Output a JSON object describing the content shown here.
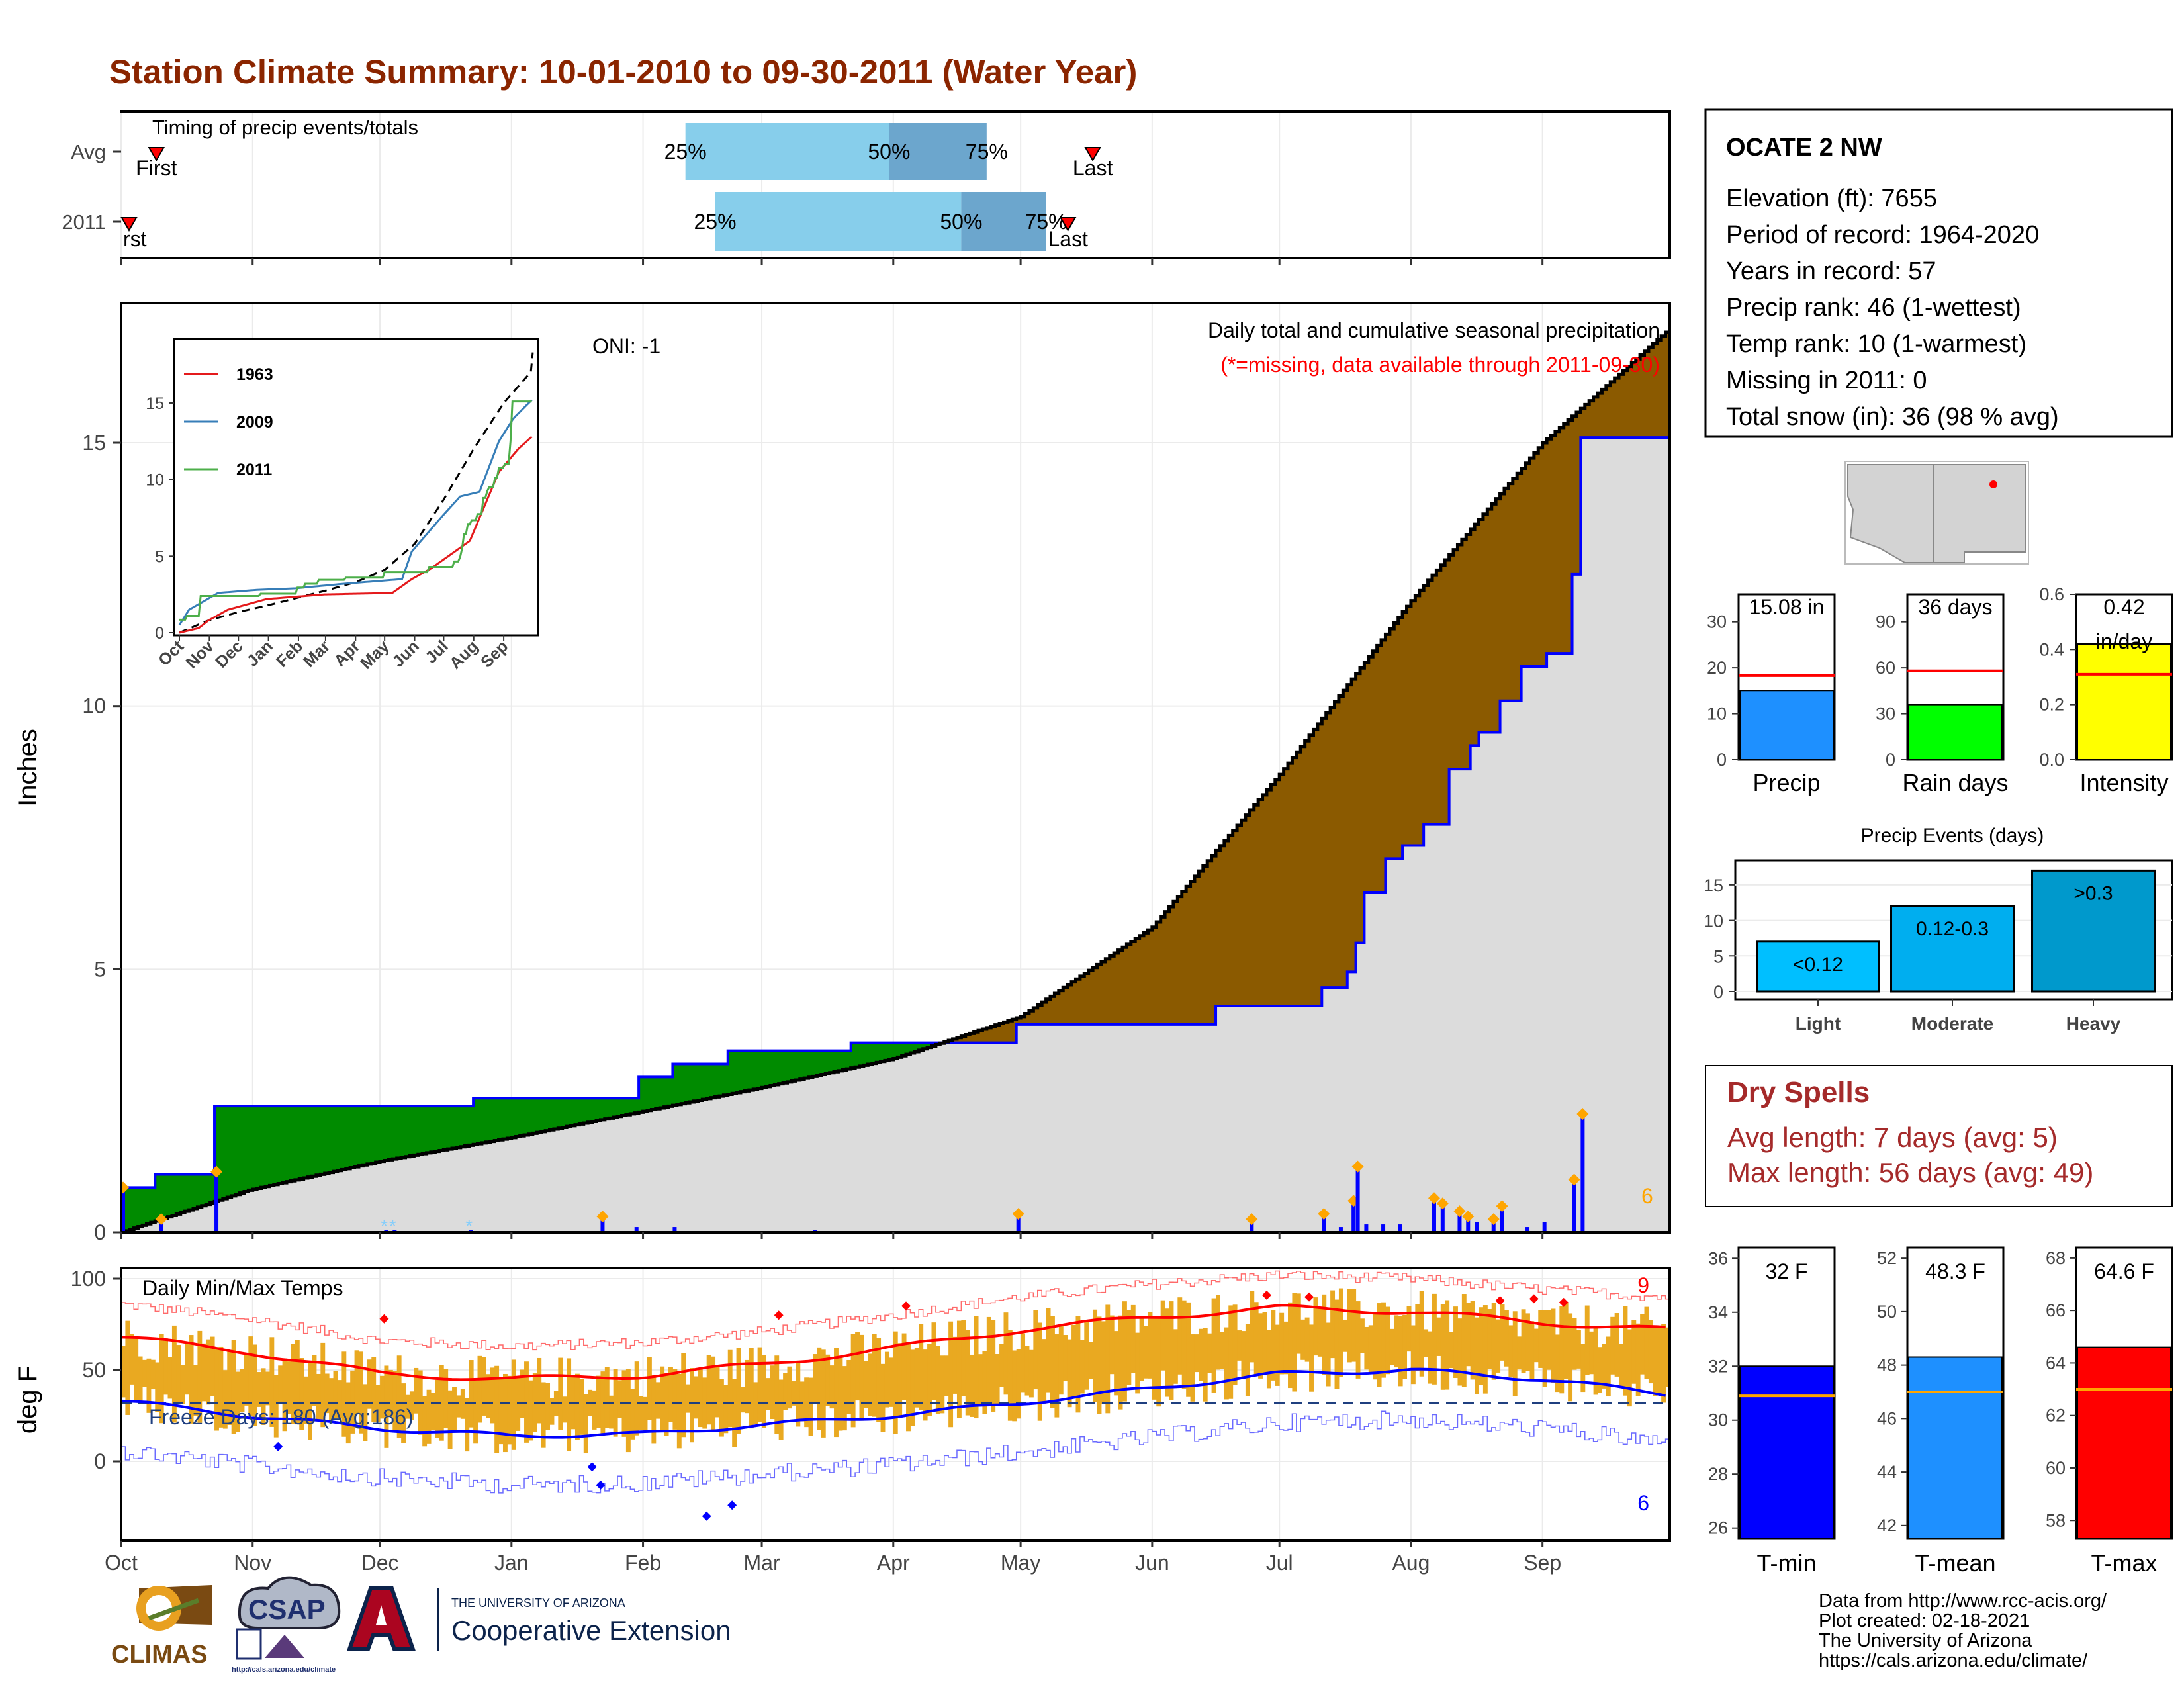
{
  "title": "Station Climate Summary: 10-01-2010 to 09-30-2011 (Water Year)",
  "colors": {
    "title": "#8B2500",
    "light_blue": "#87CEEB",
    "mid_blue": "#6CA6CD",
    "brown": "#8B5A00",
    "green": "#008B00",
    "gray_fill": "#DCDCDC",
    "cum_line": "#0000FF",
    "tmax_bar": "#E9A921",
    "tmax_avg": "#FF0000",
    "tmin_avg": "#0000FF",
    "red": "#FF0000",
    "dry_red": "#A52A2A",
    "orange": "#FFA500"
  },
  "months": [
    "Oct",
    "Nov",
    "Dec",
    "Jan",
    "Feb",
    "Mar",
    "Apr",
    "May",
    "Jun",
    "Jul",
    "Aug",
    "Sep"
  ],
  "timing": {
    "label": "Timing of precip events/totals",
    "rows": [
      "Avg",
      "2011"
    ],
    "avg": {
      "first_day": 8,
      "last_day": 229,
      "p25_day": 133,
      "p50_day": 181,
      "p75_day": 204
    },
    "y2011": {
      "first_day": 0,
      "last_day": 223,
      "p25_day": 140,
      "p50_day": 198,
      "p75_day": 218
    },
    "first_label": "First",
    "last_label": "Last",
    "p25": "25%",
    "p50": "50%",
    "p75": "75%",
    "y2011_first_text": "rst"
  },
  "info_box": {
    "station": "OCATE 2 NW",
    "lines": [
      "Elevation (ft): 7655",
      "Period of record: 1964-2020",
      "Years in record: 57",
      "Precip rank: 46 (1-wettest)",
      "Temp rank: 10 (1-warmest)",
      "Missing in 2011: 0",
      "Total snow (in): 36 (98 % avg)"
    ]
  },
  "precip_panel": {
    "ylabel": "Inches",
    "legend_line1": "Daily total and cumulative seasonal precipitation",
    "legend_line2": "(*=missing, data available through 2011-09-30)",
    "oni": "ONI: -1",
    "count": "6",
    "yticks": [
      0,
      5,
      10,
      15
    ],
    "ymax": 17.1
  },
  "inset": {
    "xticks": [
      "Oct",
      "Nov",
      "Dec",
      "Jan",
      "Feb",
      "Mar",
      "Apr",
      "May",
      "Jun",
      "Jul",
      "Aug",
      "Sep"
    ],
    "yticks": [
      0,
      5,
      10,
      15
    ],
    "legend": [
      "1963",
      "2009",
      "2011"
    ]
  },
  "mini_bars": {
    "precip": {
      "label": "Precip",
      "value": 15.08,
      "avg": 18.3,
      "text": "15.08 in",
      "yticks": [
        0,
        10,
        20,
        30
      ],
      "ymax": 36
    },
    "rain_days": {
      "label": "Rain days",
      "value": 36,
      "avg": 58,
      "text": "36 days",
      "yticks": [
        0,
        30,
        60,
        90
      ],
      "ymax": 108
    },
    "intensity": {
      "label": "Intensity",
      "value": 0.42,
      "avg": 0.31,
      "text1": "0.42",
      "text2": "in/day",
      "yticks": [
        "0.0",
        "0.2",
        "0.4",
        "0.6"
      ],
      "ymax": 0.6
    }
  },
  "events": {
    "title": "Precip Events (days)",
    "categories": [
      "Light",
      "Moderate",
      "Heavy"
    ],
    "values": [
      7,
      12,
      17
    ],
    "labels": [
      "<0.12",
      "0.12-0.3",
      ">0.3"
    ],
    "yticks": [
      0,
      5,
      10,
      15
    ]
  },
  "dry_spells": {
    "title": "Dry Spells",
    "line1": "Avg length: 7 days (avg: 5)",
    "line2": "Max length: 56 days (avg: 49)"
  },
  "temp_panel": {
    "ylabel": "deg F",
    "label": "Daily Min/Max Temps",
    "freeze": "Freeze Days: 180 (Avg:186)",
    "hot_count": "9",
    "cold_count": "6",
    "yticks": [
      0,
      50,
      100
    ]
  },
  "temp_bars": {
    "tmin": {
      "label": "T-min",
      "value": 32.0,
      "avg": 30.9,
      "text": "32 F",
      "yticks": [
        28,
        30,
        32,
        34,
        36,
        26
      ],
      "ymin": 25.6,
      "ymax": 36.4
    },
    "tmean": {
      "label": "T-mean",
      "value": 48.3,
      "avg": 47.0,
      "text": "48.3 F",
      "yticks": [
        42,
        44,
        46,
        48,
        50,
        52
      ],
      "ymin": 41.5,
      "ymax": 52.4
    },
    "tmax": {
      "label": "T-max",
      "value": 64.6,
      "avg": 63.0,
      "text": "64.6 F",
      "yticks": [
        58,
        60,
        62,
        64,
        66,
        68
      ],
      "ymin": 57.3,
      "ymax": 68.4
    }
  },
  "footer": {
    "lines": [
      "Data from http://www.rcc-acis.org/",
      "Plot created: 02-18-2021",
      "The University of Arizona",
      "https://cals.arizona.edu/climate/"
    ],
    "ua_small": "THE UNIVERSITY OF ARIZONA",
    "ua_big": "Cooperative Extension",
    "climas": "CLIMAS",
    "csap": "CSAP",
    "csap_url": "http://cals.arizona.edu/climate"
  },
  "chart_data": {
    "type": "area",
    "title": "Station Climate Summary: 10-01-2010 to 09-30-2011 (Water Year)",
    "ylabel": "Inches",
    "cumulative_2011": [
      [
        0,
        0.85
      ],
      [
        8,
        0.85
      ],
      [
        8,
        1.1
      ],
      [
        22,
        1.1
      ],
      [
        22,
        2.4
      ],
      [
        83,
        2.4
      ],
      [
        83,
        2.55
      ],
      [
        122,
        2.55
      ],
      [
        122,
        2.95
      ],
      [
        130,
        2.95
      ],
      [
        130,
        3.2
      ],
      [
        143,
        3.2
      ],
      [
        143,
        3.45
      ],
      [
        172,
        3.45
      ],
      [
        172,
        3.6
      ],
      [
        211,
        3.6
      ],
      [
        211,
        3.95
      ],
      [
        258,
        3.95
      ],
      [
        258,
        4.3
      ],
      [
        283,
        4.3
      ],
      [
        283,
        4.65
      ],
      [
        289,
        4.65
      ],
      [
        289,
        4.95
      ],
      [
        291,
        4.95
      ],
      [
        291,
        5.5
      ],
      [
        293,
        5.5
      ],
      [
        293,
        6.45
      ],
      [
        298,
        6.45
      ],
      [
        298,
        7.1
      ],
      [
        302,
        7.1
      ],
      [
        302,
        7.35
      ],
      [
        307,
        7.35
      ],
      [
        307,
        7.75
      ],
      [
        313,
        7.75
      ],
      [
        313,
        8.8
      ],
      [
        318,
        8.8
      ],
      [
        318,
        9.25
      ],
      [
        320,
        9.25
      ],
      [
        320,
        9.5
      ],
      [
        325,
        9.5
      ],
      [
        325,
        10.1
      ],
      [
        330,
        10.1
      ],
      [
        330,
        10.75
      ],
      [
        336,
        10.75
      ],
      [
        336,
        11.0
      ],
      [
        342,
        11.0
      ],
      [
        342,
        12.5
      ],
      [
        344,
        12.5
      ],
      [
        344,
        15.1
      ],
      [
        364,
        15.1
      ]
    ],
    "average_cumulative": [
      [
        0,
        0
      ],
      [
        30,
        0.8
      ],
      [
        61,
        1.35
      ],
      [
        92,
        1.8
      ],
      [
        123,
        2.3
      ],
      [
        151,
        2.75
      ],
      [
        182,
        3.3
      ],
      [
        212,
        4.1
      ],
      [
        243,
        5.8
      ],
      [
        273,
        8.7
      ],
      [
        304,
        12.0
      ],
      [
        335,
        15.0
      ],
      [
        364,
        17.1
      ]
    ],
    "daily_precip": [
      [
        0,
        0.85
      ],
      [
        9,
        0.25
      ],
      [
        22,
        1.15
      ],
      [
        62,
        0.05
      ],
      [
        64,
        0.05
      ],
      [
        82,
        0.05
      ],
      [
        113,
        0.3
      ],
      [
        121,
        0.1
      ],
      [
        130,
        0.1
      ],
      [
        163,
        0.05
      ],
      [
        211,
        0.35
      ],
      [
        266,
        0.25
      ],
      [
        283,
        0.35
      ],
      [
        287,
        0.1
      ],
      [
        290,
        0.6
      ],
      [
        291,
        1.25
      ],
      [
        293,
        0.15
      ],
      [
        297,
        0.15
      ],
      [
        301,
        0.15
      ],
      [
        309,
        0.65
      ],
      [
        311,
        0.55
      ],
      [
        315,
        0.4
      ],
      [
        317,
        0.3
      ],
      [
        319,
        0.2
      ],
      [
        323,
        0.25
      ],
      [
        325,
        0.5
      ],
      [
        331,
        0.1
      ],
      [
        335,
        0.2
      ],
      [
        342,
        1.0
      ],
      [
        344,
        2.25
      ]
    ],
    "temperature_avg_max": [
      [
        0,
        68
      ],
      [
        30,
        60
      ],
      [
        61,
        48
      ],
      [
        92,
        45
      ],
      [
        123,
        47
      ],
      [
        151,
        53
      ],
      [
        182,
        62
      ],
      [
        212,
        72
      ],
      [
        243,
        79
      ],
      [
        273,
        84
      ],
      [
        304,
        82
      ],
      [
        335,
        76
      ],
      [
        364,
        72
      ]
    ],
    "temperature_avg_min": [
      [
        0,
        33
      ],
      [
        30,
        25
      ],
      [
        61,
        18
      ],
      [
        92,
        14
      ],
      [
        123,
        15
      ],
      [
        151,
        20
      ],
      [
        182,
        25
      ],
      [
        212,
        32
      ],
      [
        243,
        40
      ],
      [
        273,
        48
      ],
      [
        304,
        50
      ],
      [
        335,
        45
      ],
      [
        364,
        37
      ]
    ]
  }
}
